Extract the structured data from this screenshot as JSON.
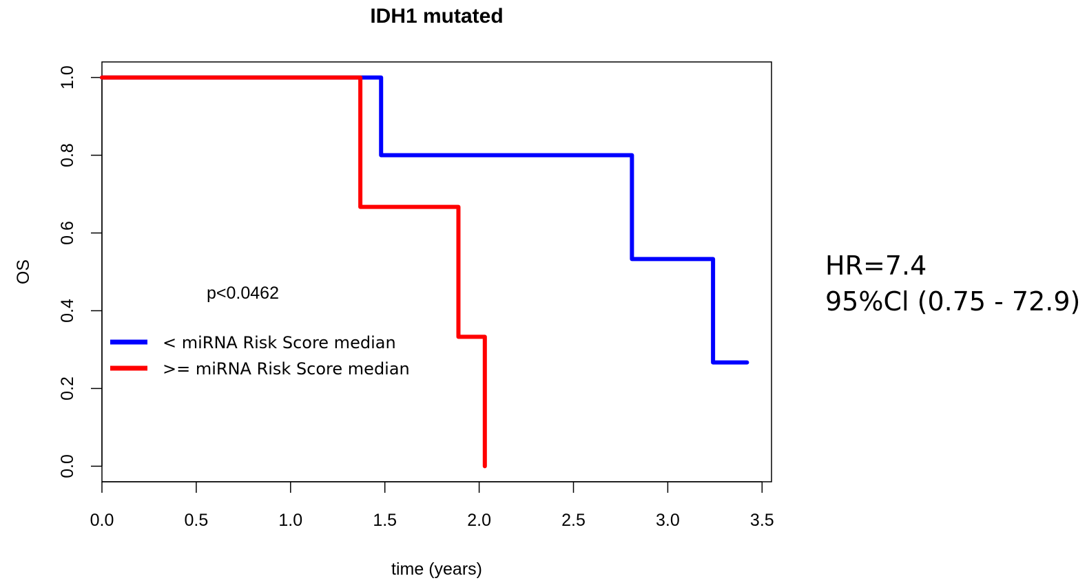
{
  "chart_data": {
    "type": "line",
    "step": true,
    "title": "IDH1 mutated",
    "xlabel": "time (years)",
    "ylabel": "OS",
    "xlim": [
      0,
      3.55
    ],
    "ylim": [
      -0.04,
      1.04
    ],
    "xticks": [
      "0.0",
      "0.5",
      "1.0",
      "1.5",
      "2.0",
      "2.5",
      "3.0",
      "3.5"
    ],
    "yticks": [
      "0.0",
      "0.2",
      "0.4",
      "0.6",
      "0.8",
      "1.0"
    ],
    "grid": false,
    "legend_position": "left",
    "annotation": "p<0.0462",
    "series": [
      {
        "name": "< miRNA Risk Score median",
        "color": "#0000ff",
        "x": [
          0,
          1.48,
          2.81,
          3.24,
          3.42
        ],
        "y": [
          1.0,
          0.8,
          0.533,
          0.267,
          0.267
        ]
      },
      {
        "name": ">= miRNA Risk Score median",
        "color": "#ff0000",
        "x": [
          0,
          1.37,
          1.89,
          2.03,
          2.03
        ],
        "y": [
          1.0,
          0.667,
          0.333,
          0.0,
          0.0
        ]
      }
    ]
  },
  "side_text": {
    "hr": "HR=7.4",
    "ci": "95%Cl (0.75 - 72.9)"
  }
}
